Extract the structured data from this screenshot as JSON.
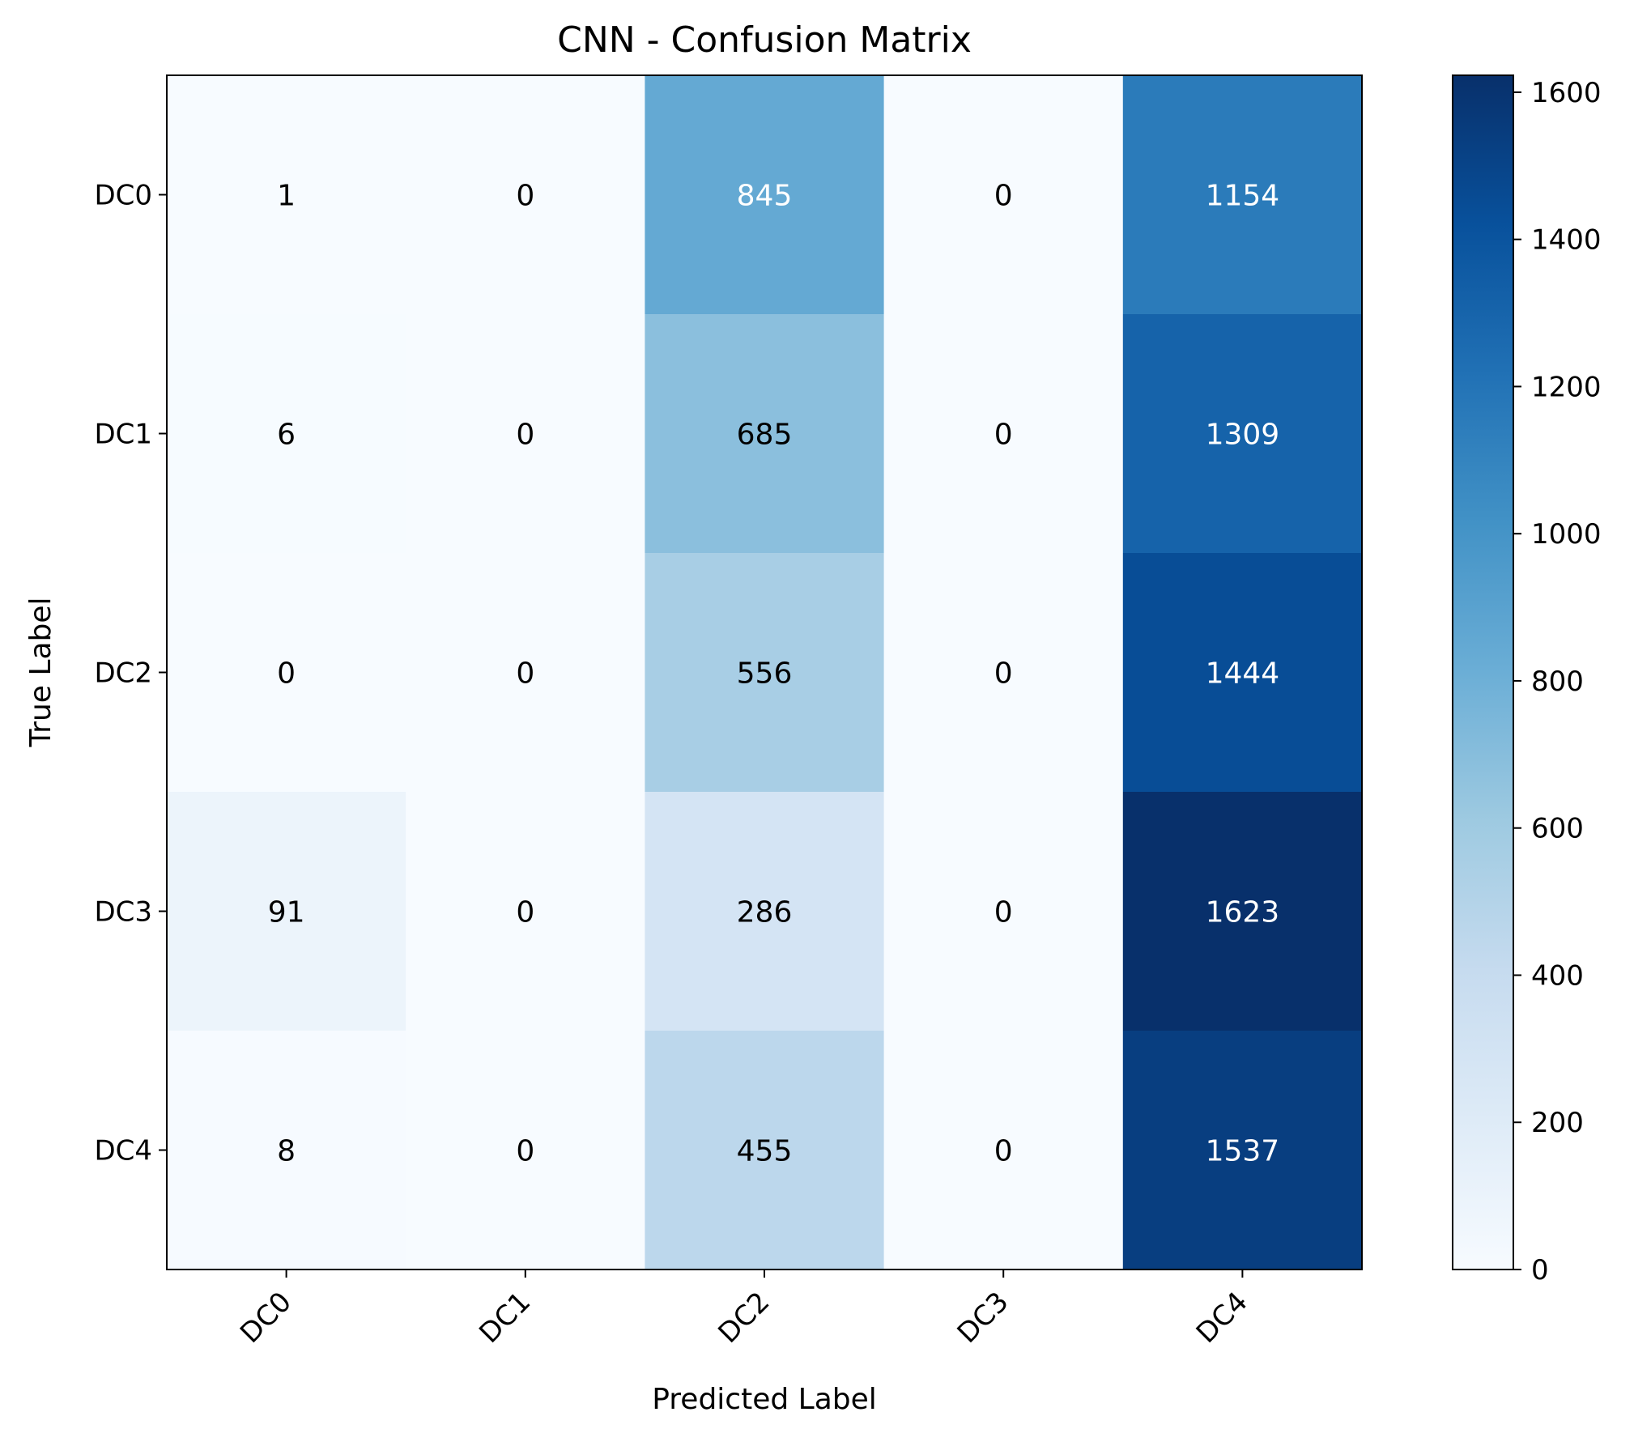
{
  "chart_data": {
    "type": "heatmap",
    "title": "CNN - Confusion Matrix",
    "xlabel": "Predicted Label",
    "ylabel": "True Label",
    "x_categories": [
      "DC0",
      "DC1",
      "DC2",
      "DC3",
      "DC4"
    ],
    "y_categories": [
      "DC0",
      "DC1",
      "DC2",
      "DC3",
      "DC4"
    ],
    "values": [
      [
        1,
        0,
        845,
        0,
        1154
      ],
      [
        6,
        0,
        685,
        0,
        1309
      ],
      [
        0,
        0,
        556,
        0,
        1444
      ],
      [
        91,
        0,
        286,
        0,
        1623
      ],
      [
        8,
        0,
        455,
        0,
        1537
      ]
    ],
    "colormap": "Blues",
    "colorbar": {
      "range": [
        0,
        1623
      ],
      "ticks": [
        0,
        200,
        400,
        600,
        800,
        1000,
        1200,
        1400,
        1600
      ]
    },
    "grid": false
  }
}
